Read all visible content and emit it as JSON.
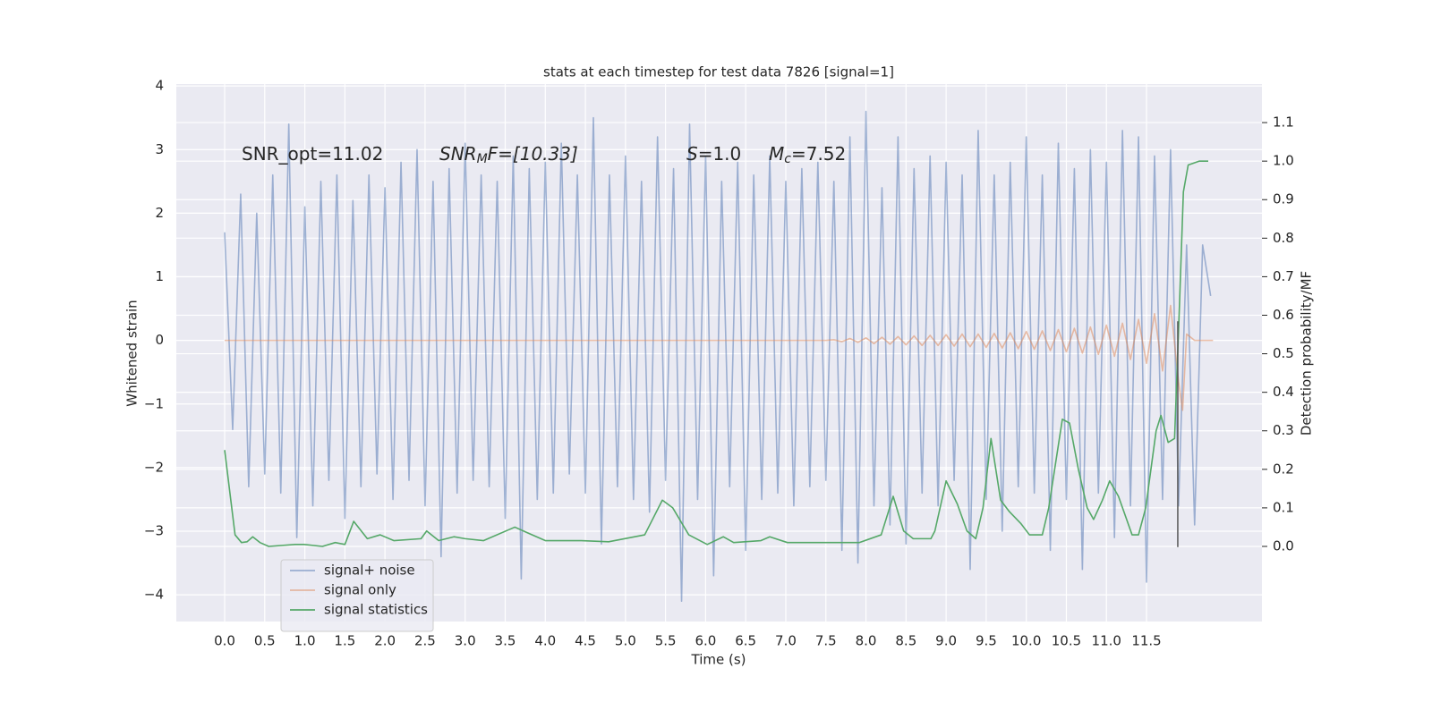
{
  "chart_data": {
    "type": "line",
    "title": "stats at each timestep for test data 7826 [signal=1]",
    "xlabel": "Time (s)",
    "ylabel": "Whitened strain",
    "y2label": "Detection probability/MF",
    "xlim": [
      -0.603,
      12.94
    ],
    "ylim": [
      -4.42,
      4.03
    ],
    "y2lim": [
      -0.195,
      1.2
    ],
    "xticks": [
      {
        "value": 0,
        "label": "0.0"
      },
      0.5,
      {
        "value": 1,
        "label": "1.0"
      },
      1.5,
      {
        "value": 2,
        "label": "2.0"
      },
      2.5,
      {
        "value": 3,
        "label": "3.0"
      },
      3.5,
      {
        "value": 4,
        "label": "4.0"
      },
      4.5,
      {
        "value": 5,
        "label": "5.0"
      },
      5.5,
      {
        "value": 6,
        "label": "6.0"
      },
      6.5,
      {
        "value": 7,
        "label": "7.0"
      },
      7.5,
      {
        "value": 8,
        "label": "8.0"
      },
      8.5,
      {
        "value": 9,
        "label": "9.0"
      },
      9.5,
      {
        "value": 10,
        "label": "10.0"
      },
      10.5,
      {
        "value": 11,
        "label": "11.0"
      },
      11.5
    ],
    "yticks": [
      {
        "value": -4,
        "label": "−4"
      },
      {
        "value": -3,
        "label": "−3"
      },
      {
        "value": -2,
        "label": "−2"
      },
      {
        "value": -1,
        "label": "−1"
      },
      0,
      1,
      2,
      3,
      4
    ],
    "y2ticks": [
      {
        "value": 0,
        "label": "0.0"
      },
      0.1,
      0.2,
      0.3,
      0.4,
      0.5,
      0.6,
      0.7,
      0.8,
      0.9,
      {
        "value": 1,
        "label": "1.0"
      },
      1.1
    ],
    "grid": true,
    "legend": "lower left",
    "annotations": [
      [
        "SNR_opt=11.02"
      ],
      [
        "SNR",
        "M",
        "F=[10.33]"
      ],
      [
        "S",
        "=1.0"
      ],
      [
        "M",
        "c",
        "=7.52"
      ]
    ],
    "series": [
      {
        "name": "signal+ noise",
        "color": "#4c72b0",
        "alpha": 0.5,
        "x": [
          0.0,
          0.1,
          0.2,
          0.3,
          0.4,
          0.5,
          0.6,
          0.7,
          0.8,
          0.9,
          1.0,
          1.1,
          1.2,
          1.3,
          1.4,
          1.5,
          1.6,
          1.7,
          1.8,
          1.9,
          2.0,
          2.1,
          2.2,
          2.3,
          2.4,
          2.5,
          2.6,
          2.7,
          2.8,
          2.9,
          3.0,
          3.1,
          3.2,
          3.3,
          3.4,
          3.5,
          3.6,
          3.7,
          3.8,
          3.9,
          4.0,
          4.1,
          4.2,
          4.3,
          4.4,
          4.5,
          4.6,
          4.7,
          4.8,
          4.9,
          5.0,
          5.1,
          5.2,
          5.3,
          5.4,
          5.5,
          5.6,
          5.7,
          5.8,
          5.9,
          6.0,
          6.1,
          6.2,
          6.3,
          6.4,
          6.5,
          6.6,
          6.7,
          6.8,
          6.9,
          7.0,
          7.1,
          7.2,
          7.3,
          7.4,
          7.5,
          7.6,
          7.7,
          7.8,
          7.9,
          8.0,
          8.1,
          8.2,
          8.3,
          8.4,
          8.5,
          8.6,
          8.7,
          8.8,
          8.9,
          9.0,
          9.1,
          9.2,
          9.3,
          9.4,
          9.5,
          9.6,
          9.7,
          9.8,
          9.9,
          10.0,
          10.1,
          10.2,
          10.3,
          10.4,
          10.5,
          10.6,
          10.7,
          10.8,
          10.9,
          11.0,
          11.1,
          11.2,
          11.3,
          11.4,
          11.5,
          11.6,
          11.7,
          11.8,
          11.9,
          12.0,
          12.1,
          12.2,
          12.3
        ],
        "values": [
          1.7,
          -1.4,
          2.3,
          -2.3,
          2.0,
          -2.1,
          2.6,
          -2.4,
          3.4,
          -3.1,
          2.1,
          -2.6,
          2.5,
          -2.2,
          2.6,
          -2.8,
          2.2,
          -2.3,
          2.6,
          -2.1,
          2.4,
          -2.5,
          2.8,
          -2.2,
          3.0,
          -2.6,
          2.5,
          -3.4,
          2.7,
          -2.4,
          3.1,
          -2.2,
          2.6,
          -2.3,
          2.5,
          -2.8,
          2.9,
          -3.75,
          2.7,
          -2.5,
          2.8,
          -2.4,
          3.1,
          -2.1,
          2.6,
          -2.4,
          3.5,
          -3.2,
          2.6,
          -2.3,
          2.9,
          -2.5,
          2.5,
          -2.7,
          3.2,
          -2.2,
          2.7,
          -4.1,
          3.4,
          -2.5,
          2.9,
          -3.7,
          2.5,
          -2.3,
          2.8,
          -3.3,
          2.6,
          -2.5,
          2.9,
          -2.4,
          2.5,
          -2.6,
          2.7,
          -2.3,
          2.8,
          -2.2,
          2.5,
          -3.3,
          3.2,
          -3.5,
          3.6,
          -2.6,
          2.4,
          -2.9,
          3.2,
          -3.2,
          2.7,
          -2.4,
          2.9,
          -2.6,
          2.8,
          -2.2,
          2.6,
          -3.6,
          3.3,
          -2.5,
          2.6,
          -3.0,
          2.8,
          -2.3,
          3.2,
          -2.4,
          2.6,
          -3.3,
          3.1,
          -2.5,
          2.7,
          -3.6,
          3.0,
          -2.4,
          2.8,
          -3.1,
          3.3,
          -2.6,
          3.2,
          -3.8,
          2.9,
          -2.5,
          3.0,
          -2.6,
          1.5,
          -2.9,
          1.5,
          0.7
        ]
      },
      {
        "name": "signal only",
        "color": "#dd8452",
        "alpha": 0.5,
        "x": [
          0.0,
          7.5,
          7.6,
          7.7,
          7.8,
          7.9,
          8.0,
          8.1,
          8.2,
          8.3,
          8.4,
          8.5,
          8.6,
          8.7,
          8.8,
          8.9,
          9.0,
          9.1,
          9.2,
          9.3,
          9.4,
          9.5,
          9.6,
          9.7,
          9.8,
          9.9,
          10.0,
          10.1,
          10.2,
          10.3,
          10.4,
          10.5,
          10.6,
          10.7,
          10.8,
          10.9,
          11.0,
          11.1,
          11.2,
          11.3,
          11.4,
          11.5,
          11.6,
          11.7,
          11.8,
          11.9,
          11.95,
          12.0,
          12.1,
          12.33
        ],
        "values": [
          0,
          0,
          0.01,
          -0.02,
          0.03,
          -0.03,
          0.04,
          -0.05,
          0.05,
          -0.06,
          0.06,
          -0.07,
          0.07,
          -0.08,
          0.08,
          -0.08,
          0.09,
          -0.09,
          0.1,
          -0.1,
          0.1,
          -0.11,
          0.11,
          -0.12,
          0.12,
          -0.13,
          0.14,
          -0.14,
          0.15,
          -0.16,
          0.17,
          -0.18,
          0.19,
          -0.2,
          0.21,
          -0.22,
          0.24,
          -0.25,
          0.27,
          -0.3,
          0.33,
          -0.36,
          0.42,
          -0.48,
          0.55,
          -0.65,
          -1.1,
          0.1,
          0,
          0
        ]
      },
      {
        "name": "signal statistics",
        "color": "#55a868",
        "alpha": 1,
        "axis": "y2",
        "x": [
          0,
          0.13,
          0.21,
          0.28,
          0.35,
          0.44,
          0.55,
          0.88,
          0.99,
          1.22,
          1.38,
          1.5,
          1.61,
          1.78,
          1.94,
          2.11,
          2.45,
          2.52,
          2.67,
          2.86,
          3.0,
          3.23,
          3.62,
          3.78,
          4.0,
          4.45,
          4.79,
          5.24,
          5.46,
          5.59,
          5.79,
          6.02,
          6.22,
          6.35,
          6.69,
          6.8,
          7.02,
          7.58,
          7.92,
          8.19,
          8.34,
          8.47,
          8.59,
          8.81,
          8.86,
          9.0,
          9.14,
          9.26,
          9.37,
          9.46,
          9.56,
          9.68,
          9.79,
          9.93,
          10.04,
          10.2,
          10.28,
          10.45,
          10.54,
          10.65,
          10.76,
          10.84,
          10.95,
          11.04,
          11.15,
          11.32,
          11.4,
          11.49,
          11.62,
          11.68,
          11.77,
          11.85,
          11.91,
          11.96,
          12.02,
          12.16,
          12.27
        ],
        "values": [
          0.25,
          0.03,
          0.01,
          0.012,
          0.025,
          0.01,
          0.0,
          0.005,
          0.005,
          0.0,
          0.01,
          0.005,
          0.065,
          0.02,
          0.03,
          0.015,
          0.02,
          0.04,
          0.015,
          0.025,
          0.02,
          0.015,
          0.05,
          0.035,
          0.015,
          0.015,
          0.012,
          0.03,
          0.12,
          0.1,
          0.03,
          0.005,
          0.025,
          0.01,
          0.015,
          0.025,
          0.01,
          0.01,
          0.01,
          0.03,
          0.13,
          0.04,
          0.02,
          0.02,
          0.04,
          0.17,
          0.11,
          0.04,
          0.02,
          0.1,
          0.28,
          0.12,
          0.09,
          0.06,
          0.03,
          0.03,
          0.1,
          0.33,
          0.32,
          0.2,
          0.1,
          0.07,
          0.12,
          0.17,
          0.13,
          0.03,
          0.03,
          0.1,
          0.3,
          0.34,
          0.27,
          0.28,
          0.62,
          0.92,
          0.99,
          1.0,
          1.0
        ]
      }
    ],
    "vline": {
      "x": 11.89,
      "ymin": -3.25,
      "ymax": 0.3,
      "color": "#555555"
    }
  }
}
